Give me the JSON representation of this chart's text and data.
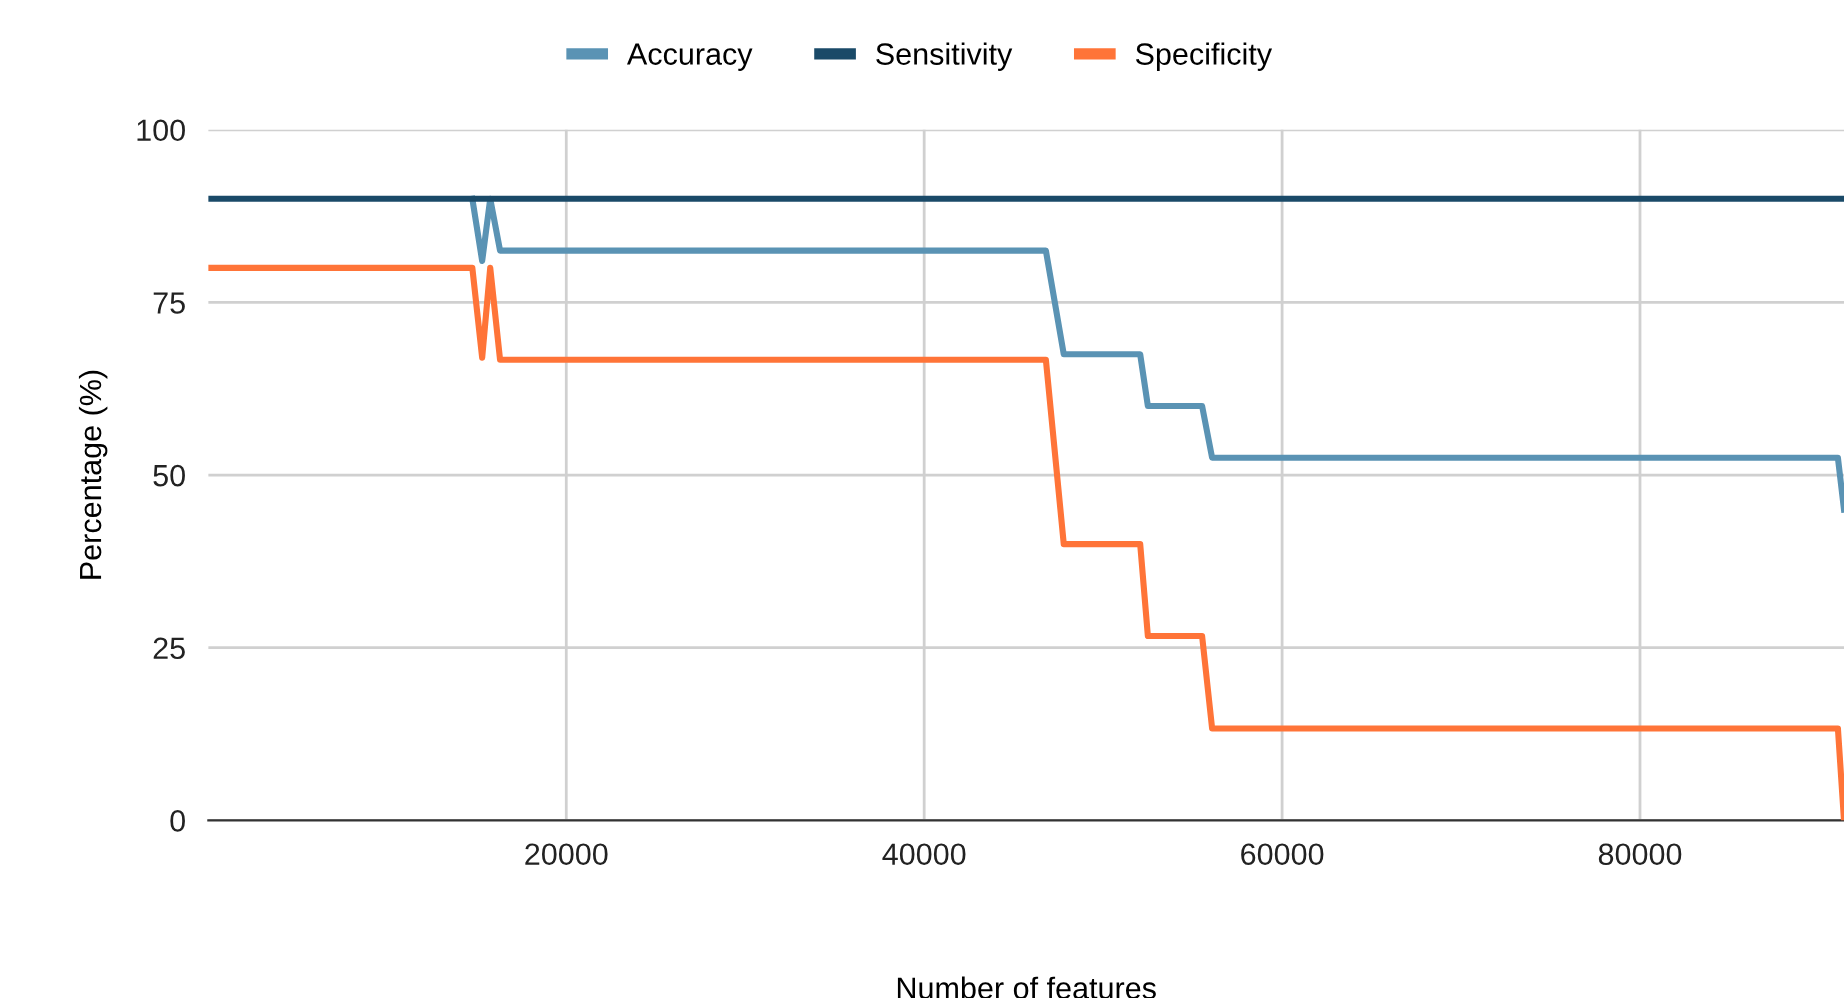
{
  "chart_data": {
    "type": "line",
    "xlabel": "Number of features",
    "ylabel": "Percentage (%)",
    "xlim": [
      0,
      91400
    ],
    "xticks": [
      20000,
      40000,
      60000,
      80000
    ],
    "ylim": [
      0,
      100
    ],
    "yticks": [
      0,
      25,
      50,
      75,
      100
    ],
    "grid": true,
    "legend": "top",
    "marker": "none",
    "line_style": "solid",
    "series": [
      {
        "name": "Accuracy",
        "color": "#5a93b4",
        "x": [
          14750,
          15300,
          15750,
          16300,
          46800,
          47800,
          52070,
          52500,
          55530,
          56090,
          91060,
          91400
        ],
        "values": [
          90,
          81,
          90,
          82.5,
          82.5,
          67.5,
          67.5,
          60,
          60,
          52.5,
          52.5,
          45
        ]
      },
      {
        "name": "Sensitivity",
        "color": "#1a4a68",
        "x": [
          0,
          91400
        ],
        "values": [
          90,
          90
        ]
      },
      {
        "name": "Specificity",
        "color": "#ff7438",
        "x": [
          0,
          14750,
          15300,
          15750,
          16300,
          46800,
          47800,
          52070,
          52500,
          55530,
          56090,
          91060,
          91400
        ],
        "values": [
          80,
          80,
          67,
          80,
          66.7,
          66.7,
          40,
          40,
          26.7,
          26.7,
          13.3,
          13.3,
          0
        ]
      }
    ]
  }
}
